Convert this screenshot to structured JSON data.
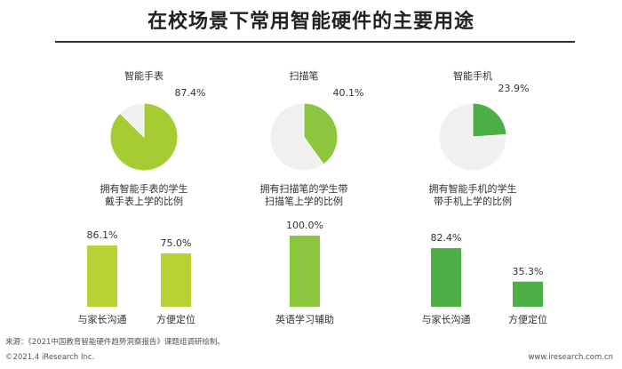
{
  "title": "在校场景下常用智能硬件的主要用途",
  "colors": {
    "slice_1": "#a6cc33",
    "slice_2": "#8cc63f",
    "slice_3": "#4caf45",
    "bar_1": "#b7d333",
    "bar_2": "#8cc63f",
    "bar_3": "#4caf45",
    "remainder": "#f0f0f0",
    "label": "#333333"
  },
  "chart_data": [
    {
      "type": "pie",
      "title": "智能手表",
      "slices": [
        {
          "label": "拥有智能手表的学生",
          "value": 87.4
        },
        {
          "label": "",
          "value": 12.6
        }
      ],
      "value_label": "87.4%",
      "caption": [
        "拥有智能手表的学生",
        "戴手表上学的比例"
      ]
    },
    {
      "type": "pie",
      "title": "扫描笔",
      "slices": [
        {
          "label": "拥有扫描笔的学生",
          "value": 40.1
        },
        {
          "label": "",
          "value": 59.9
        }
      ],
      "value_label": "40.1%",
      "caption": [
        "拥有扫描笔的学生带",
        "扫描笔上学的比例"
      ]
    },
    {
      "type": "pie",
      "title": "智能手机",
      "slices": [
        {
          "label": "拥有智能手机的学生",
          "value": 23.9
        },
        {
          "label": "",
          "value": 76.1
        }
      ],
      "value_label": "23.9%",
      "caption": [
        "拥有智能手机的学生",
        "带手机上学的比例"
      ]
    },
    {
      "type": "bar",
      "group": "智能手表",
      "categories": [
        "与家长沟通",
        "方便定位"
      ],
      "values": [
        86.1,
        75.0
      ],
      "value_labels": [
        "86.1%",
        "75.0%"
      ],
      "ylim": [
        0,
        100
      ]
    },
    {
      "type": "bar",
      "group": "扫描笔",
      "categories": [
        "英语学习辅助"
      ],
      "values": [
        100.0
      ],
      "value_labels": [
        "100.0%"
      ],
      "ylim": [
        0,
        100
      ]
    },
    {
      "type": "bar",
      "group": "智能手机",
      "categories": [
        "与家长沟通",
        "方便定位"
      ],
      "values": [
        82.4,
        35.3
      ],
      "value_labels": [
        "82.4%",
        "35.3%"
      ],
      "ylim": [
        0,
        100
      ]
    }
  ],
  "source": "来源：《2021中国教育智能硬件趋势洞察报告》课题组调研绘制。",
  "footer": {
    "left": "©2021.4 iResearch Inc.",
    "right": "www.iresearch.com.cn"
  }
}
